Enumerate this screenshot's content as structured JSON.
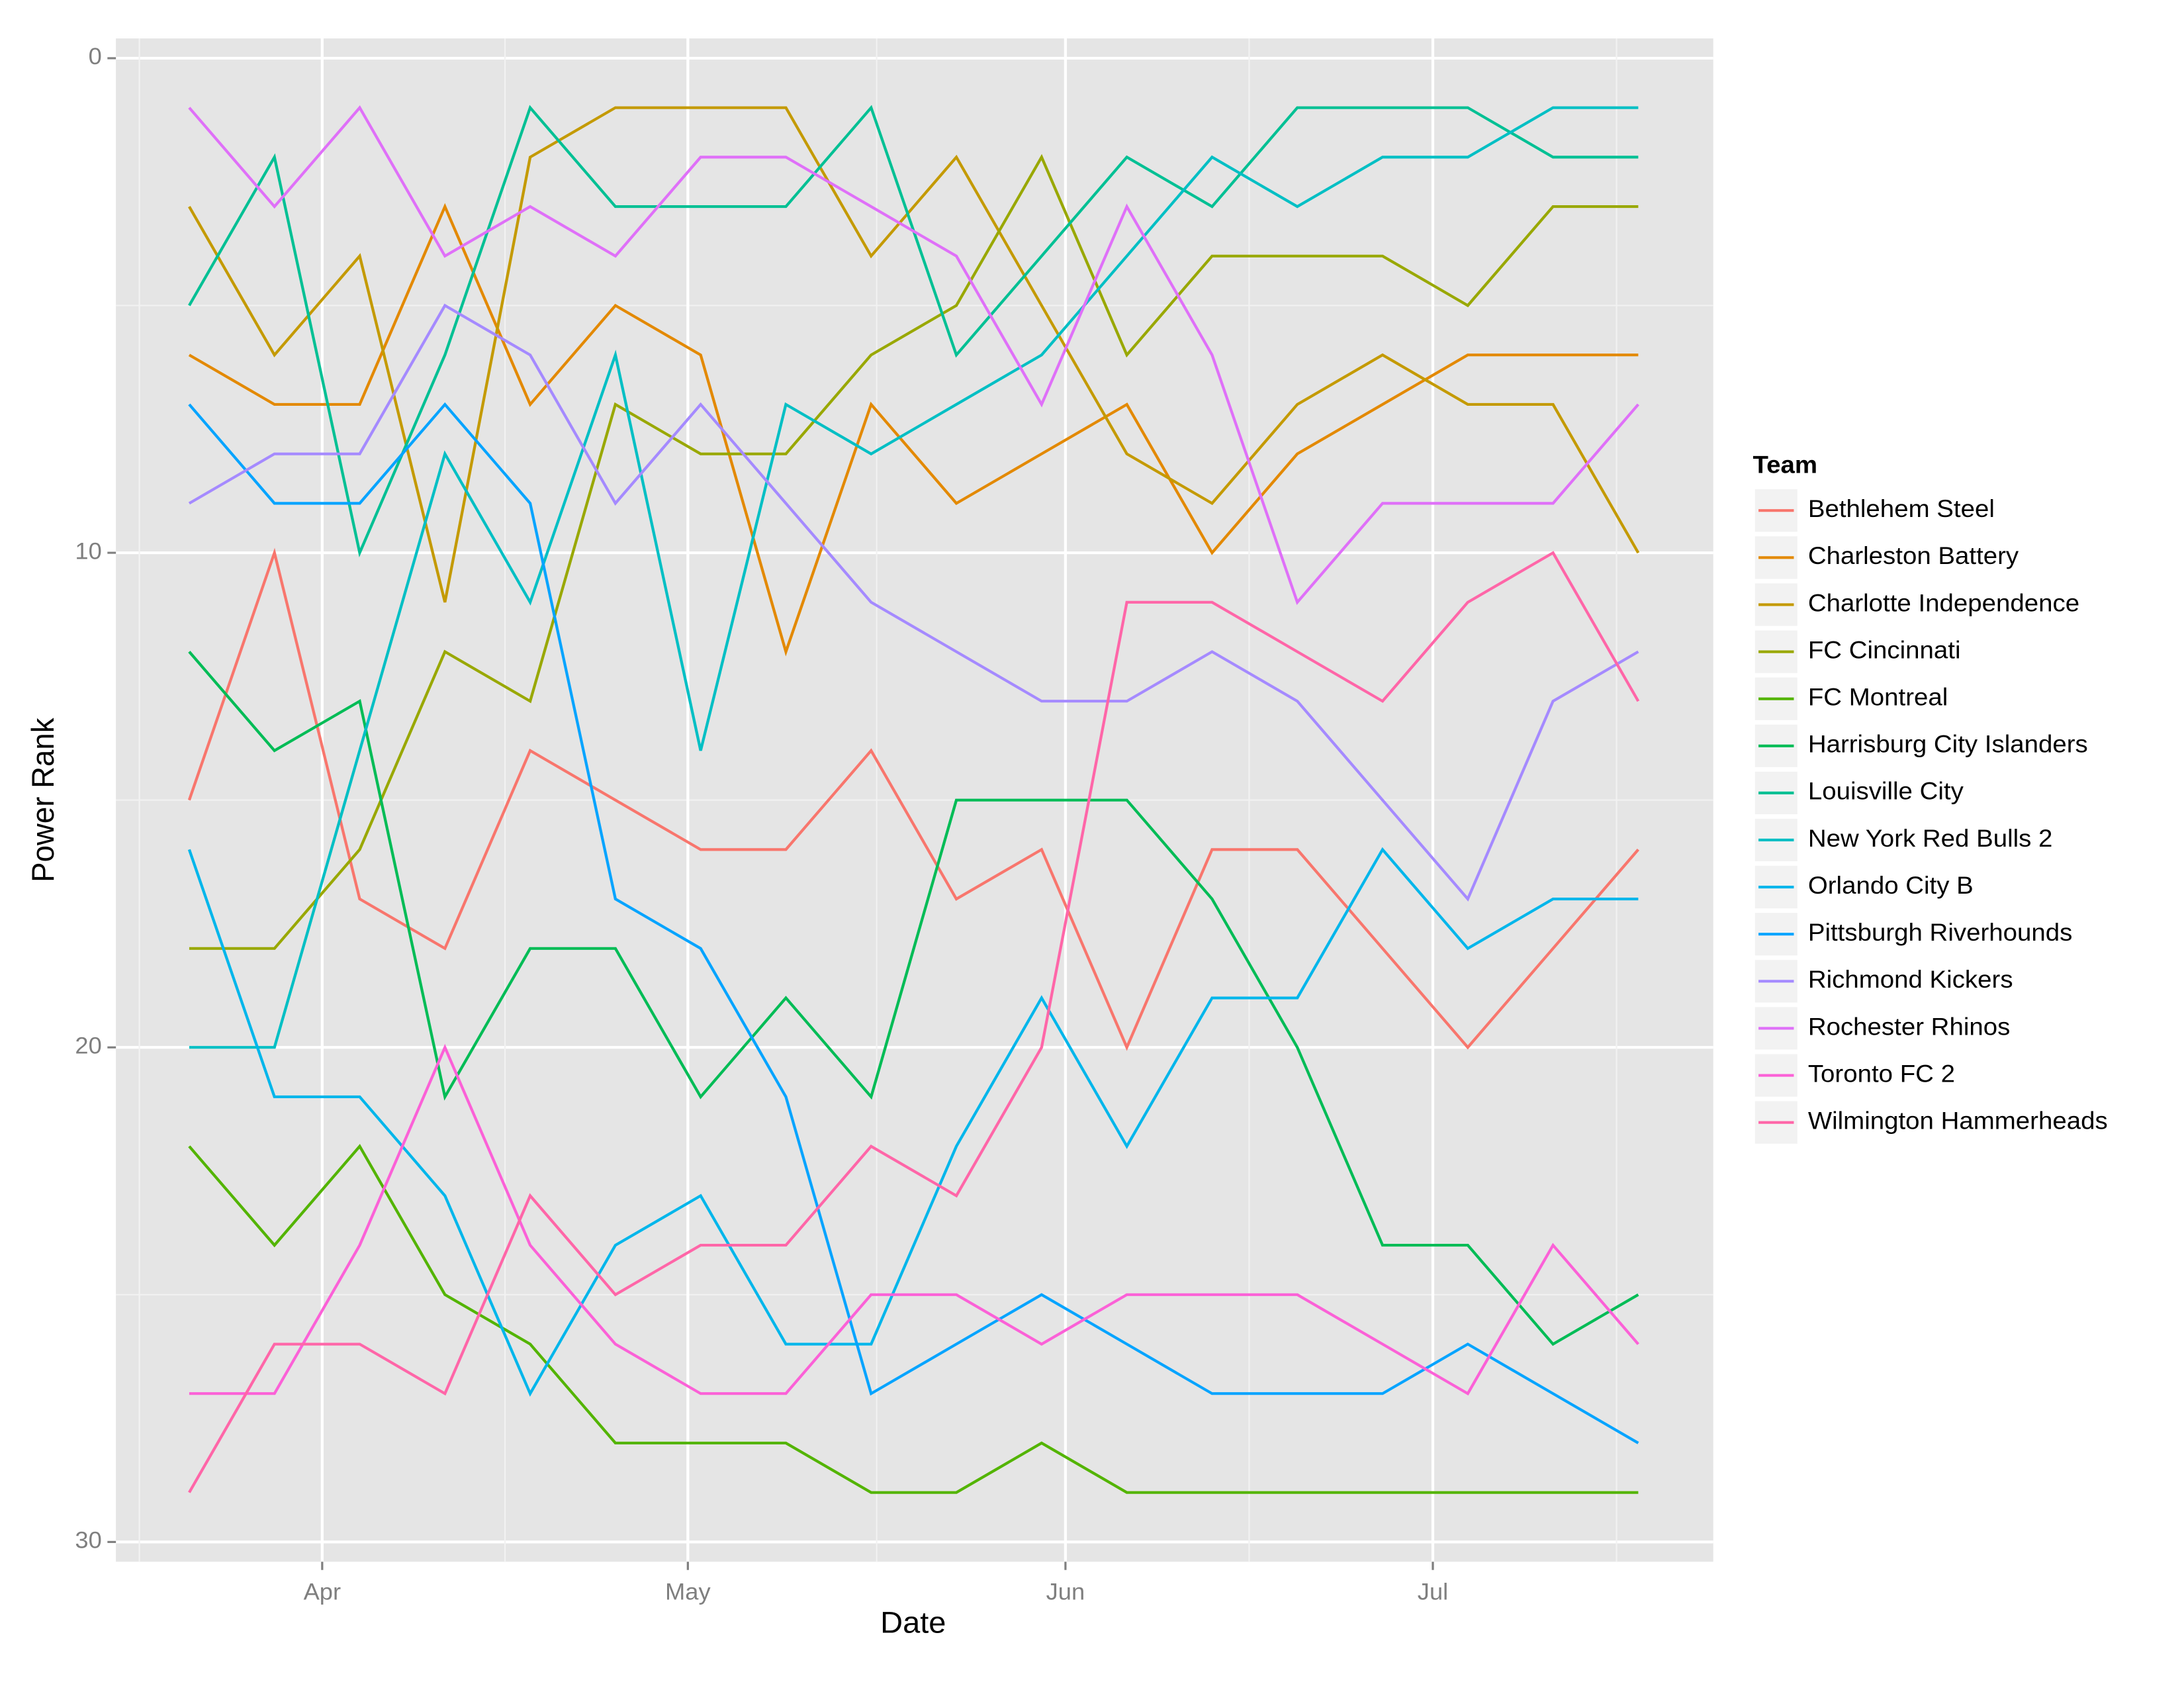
{
  "chart_data": {
    "type": "line",
    "x_label": "Date",
    "y_label": "Power Rank",
    "legend_title": "Team",
    "legend": "right",
    "grid": true,
    "categories": [
      null,
      null,
      null,
      null,
      null,
      null,
      null,
      null,
      null,
      null,
      null,
      null,
      null,
      null,
      null,
      null,
      null,
      null
    ],
    "xlim": [
      -0.86,
      17.88
    ],
    "xticks": [
      {
        "value": 1.56,
        "label": "Apr"
      },
      {
        "value": 5.85,
        "label": "May"
      },
      {
        "value": 10.28,
        "label": "Jun"
      },
      {
        "value": 14.59,
        "label": "Jul"
      }
    ],
    "ylim": [
      30.4,
      -0.4
    ],
    "yticks": [
      0,
      10,
      20,
      30
    ],
    "series": [
      {
        "name": "Bethlehem Steel",
        "color": "#F8766D",
        "values": [
          15,
          10,
          17,
          18,
          14,
          15,
          16,
          16,
          14,
          17,
          16,
          20,
          16,
          16,
          18,
          20,
          18,
          16
        ]
      },
      {
        "name": "Charleston Battery",
        "color": "#E38900",
        "values": [
          6,
          7,
          7,
          3,
          7,
          5,
          6,
          12,
          7,
          9,
          8,
          7,
          10,
          8,
          7,
          6,
          6,
          6
        ]
      },
      {
        "name": "Charlotte Independence",
        "color": "#C49A00",
        "values": [
          3,
          6,
          4,
          11,
          2,
          1,
          1,
          1,
          4,
          2,
          5,
          8,
          9,
          7,
          6,
          7,
          7,
          10
        ]
      },
      {
        "name": "FC Cincinnati",
        "color": "#99A800",
        "values": [
          18,
          18,
          16,
          12,
          13,
          7,
          8,
          8,
          6,
          5,
          2,
          6,
          4,
          4,
          4,
          5,
          3,
          3
        ]
      },
      {
        "name": "FC Montreal",
        "color": "#53B400",
        "values": [
          22,
          24,
          22,
          25,
          26,
          28,
          28,
          28,
          29,
          29,
          28,
          29,
          29,
          29,
          29,
          29,
          29,
          29
        ]
      },
      {
        "name": "Harrisburg City Islanders",
        "color": "#00BC56",
        "values": [
          12,
          14,
          13,
          21,
          18,
          18,
          21,
          19,
          21,
          15,
          15,
          15,
          17,
          20,
          24,
          24,
          26,
          25
        ]
      },
      {
        "name": "Louisville City",
        "color": "#00C094",
        "values": [
          5,
          2,
          10,
          6,
          1,
          3,
          3,
          3,
          1,
          6,
          4,
          2,
          3,
          1,
          1,
          1,
          2,
          2
        ]
      },
      {
        "name": "New York Red Bulls 2",
        "color": "#00BFC4",
        "values": [
          20,
          20,
          14,
          8,
          11,
          6,
          14,
          7,
          8,
          7,
          6,
          4,
          2,
          3,
          2,
          2,
          1,
          1
        ]
      },
      {
        "name": "Orlando City B",
        "color": "#00B6EB",
        "values": [
          16,
          21,
          21,
          23,
          27,
          24,
          23,
          26,
          26,
          22,
          19,
          22,
          19,
          19,
          16,
          18,
          17,
          17
        ]
      },
      {
        "name": "Pittsburgh Riverhounds",
        "color": "#06A4FF",
        "values": [
          7,
          9,
          9,
          7,
          9,
          17,
          18,
          21,
          27,
          26,
          25,
          26,
          27,
          27,
          27,
          26,
          27,
          28
        ]
      },
      {
        "name": "Richmond Kickers",
        "color": "#A58AFF",
        "values": [
          9,
          8,
          8,
          5,
          6,
          9,
          7,
          9,
          11,
          12,
          13,
          13,
          12,
          13,
          15,
          17,
          13,
          12
        ]
      },
      {
        "name": "Rochester Rhinos",
        "color": "#DF70F8",
        "values": [
          1,
          3,
          1,
          4,
          3,
          4,
          2,
          2,
          3,
          4,
          7,
          3,
          6,
          11,
          9,
          9,
          9,
          7
        ]
      },
      {
        "name": "Toronto FC 2",
        "color": "#FB61D7",
        "values": [
          27,
          27,
          24,
          20,
          24,
          26,
          27,
          27,
          25,
          25,
          26,
          25,
          25,
          25,
          26,
          27,
          24,
          26
        ]
      },
      {
        "name": "Wilmington Hammerheads",
        "color": "#FF66A8",
        "values": [
          29,
          26,
          26,
          27,
          23,
          25,
          24,
          24,
          22,
          23,
          20,
          11,
          11,
          12,
          13,
          11,
          10,
          13
        ]
      }
    ]
  }
}
